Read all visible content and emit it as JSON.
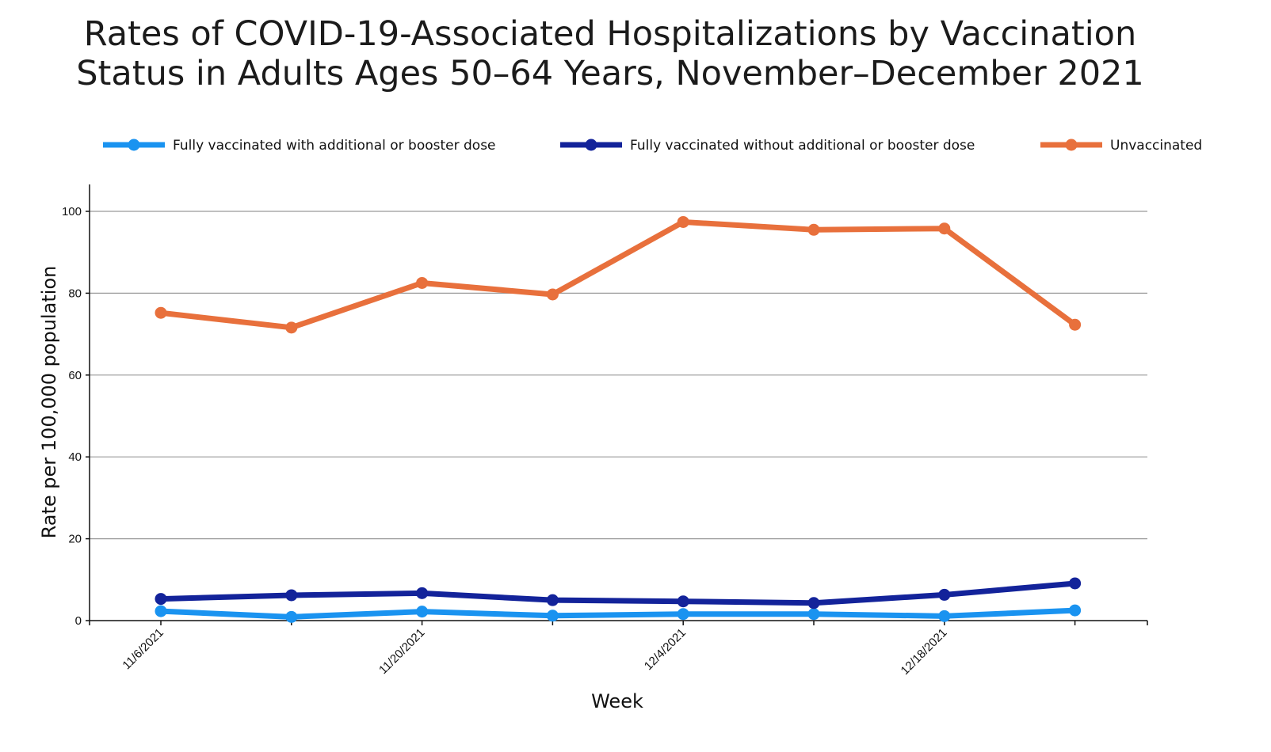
{
  "chart_data": {
    "type": "line",
    "title_line1": "Rates of COVID-19-Associated Hospitalizations by Vaccination",
    "title_line2": "Status in Adults Ages 50–64 Years, November–December 2021",
    "xlabel": "Week",
    "ylabel": "Rate per 100,000 population",
    "x": [
      "11/6/2021",
      "11/13/2021",
      "11/20/2021",
      "11/27/2021",
      "12/4/2021",
      "12/11/2021",
      "12/18/2021",
      "12/25/2021"
    ],
    "x_tick_labels": [
      "11/6/2021",
      "",
      "11/20/2021",
      "",
      "12/4/2021",
      "",
      "12/18/2021",
      ""
    ],
    "ylim": [
      0,
      100
    ],
    "yticks": [
      0,
      20,
      40,
      60,
      80,
      100
    ],
    "grid": true,
    "legend_position": "top",
    "series": [
      {
        "name": "Fully vaccinated with additional or booster dose",
        "color": "#1a93f0",
        "values": [
          2.3,
          0.9,
          2.2,
          1.2,
          1.6,
          1.6,
          1.1,
          2.5
        ]
      },
      {
        "name": "Fully vaccinated without additional or booster dose",
        "color": "#13239a",
        "values": [
          5.3,
          6.2,
          6.7,
          5.0,
          4.7,
          4.3,
          6.3,
          9.1
        ]
      },
      {
        "name": "Unvaccinated",
        "color": "#e8703c",
        "values": [
          75.2,
          71.6,
          82.5,
          79.7,
          97.4,
          95.5,
          95.8,
          72.3
        ]
      }
    ]
  }
}
